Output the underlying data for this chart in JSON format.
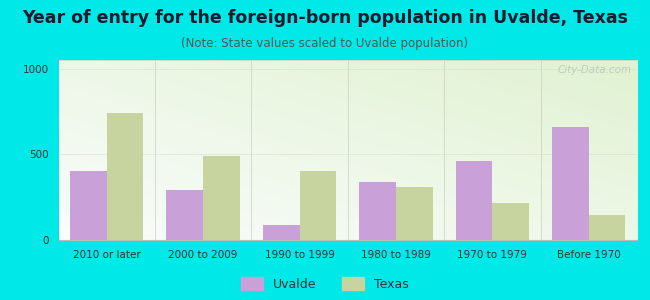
{
  "title": "Year of entry for the foreign-born population in Uvalde, Texas",
  "subtitle": "(Note: State values scaled to Uvalde population)",
  "categories": [
    "2010 or later",
    "2000 to 2009",
    "1990 to 1999",
    "1980 to 1989",
    "1970 to 1979",
    "Before 1970"
  ],
  "uvalde_values": [
    400,
    290,
    90,
    340,
    460,
    660
  ],
  "texas_values": [
    740,
    490,
    400,
    310,
    215,
    145
  ],
  "uvalde_color": "#c9a0d8",
  "texas_color": "#c8d4a0",
  "background_outer": "#00e8e8",
  "background_chart": "#eef5e4",
  "ylim": [
    0,
    1050
  ],
  "yticks": [
    0,
    500,
    1000
  ],
  "bar_width": 0.38,
  "title_fontsize": 12.5,
  "subtitle_fontsize": 8.5,
  "tick_fontsize": 7.5,
  "legend_fontsize": 9,
  "watermark": "City-Data.com",
  "title_color": "#1a1a2e",
  "subtitle_color": "#555555",
  "tick_color": "#333333"
}
